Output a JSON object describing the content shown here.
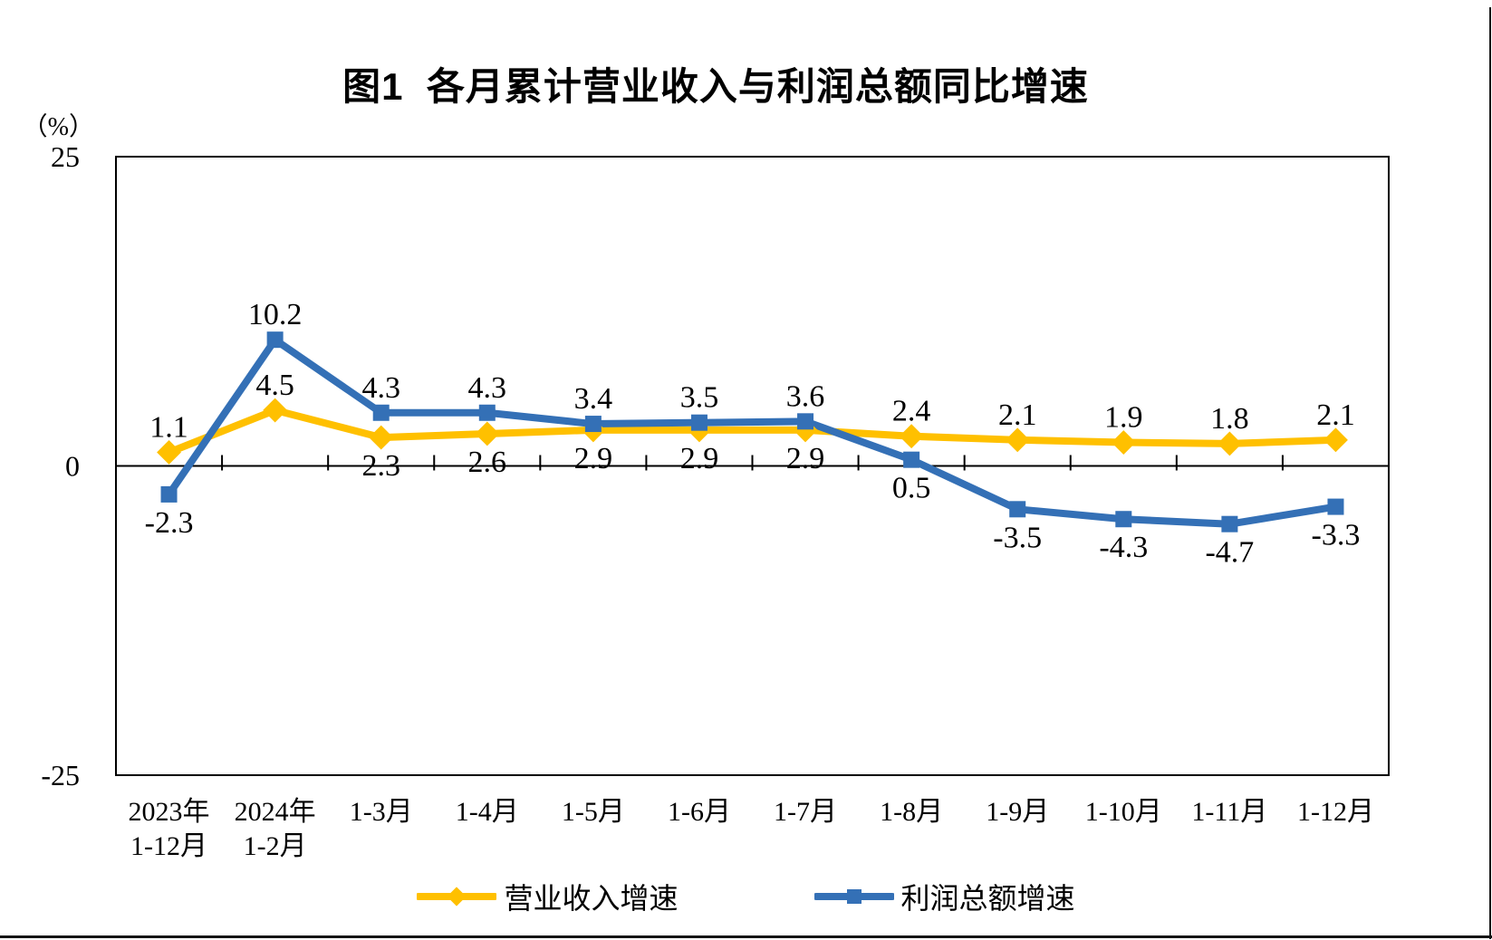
{
  "page": {
    "background": "#FFFFFF",
    "edge_border_color": "#151515"
  },
  "chart_data": {
    "type": "line",
    "title": "图1  各月累计营业收入与利润总额同比增速",
    "y_unit_label": "（%）",
    "y_axis": {
      "min": -25,
      "max": 25,
      "ticks": [
        25,
        0,
        -25
      ]
    },
    "grid": "off",
    "legend_position": "bottom",
    "categories": [
      [
        "2023年",
        "1-12月"
      ],
      [
        "2024年",
        "1-2月"
      ],
      [
        "1-3月"
      ],
      [
        "1-4月"
      ],
      [
        "1-5月"
      ],
      [
        "1-6月"
      ],
      [
        "1-7月"
      ],
      [
        "1-8月"
      ],
      [
        "1-9月"
      ],
      [
        "1-10月"
      ],
      [
        "1-11月"
      ],
      [
        "1-12月"
      ]
    ],
    "series": [
      {
        "name": "营业收入增速",
        "color": "#FFC000",
        "marker": "diamond",
        "values": [
          1.1,
          4.5,
          2.3,
          2.6,
          2.9,
          2.9,
          2.9,
          2.4,
          2.1,
          1.9,
          1.8,
          2.1
        ],
        "label_pos": [
          "above",
          "above",
          "below",
          "below",
          "below",
          "below",
          "below",
          "above",
          "above",
          "above",
          "above",
          "above"
        ]
      },
      {
        "name": "利润总额增速",
        "color": "#3470B6",
        "marker": "square",
        "values": [
          -2.3,
          10.2,
          4.3,
          4.3,
          3.4,
          3.5,
          3.6,
          0.5,
          -3.5,
          -4.3,
          -4.7,
          -3.3
        ],
        "label_pos": [
          "below",
          "above",
          "above",
          "above",
          "above",
          "above",
          "above",
          "below",
          "below",
          "below",
          "below",
          "below"
        ]
      }
    ]
  }
}
